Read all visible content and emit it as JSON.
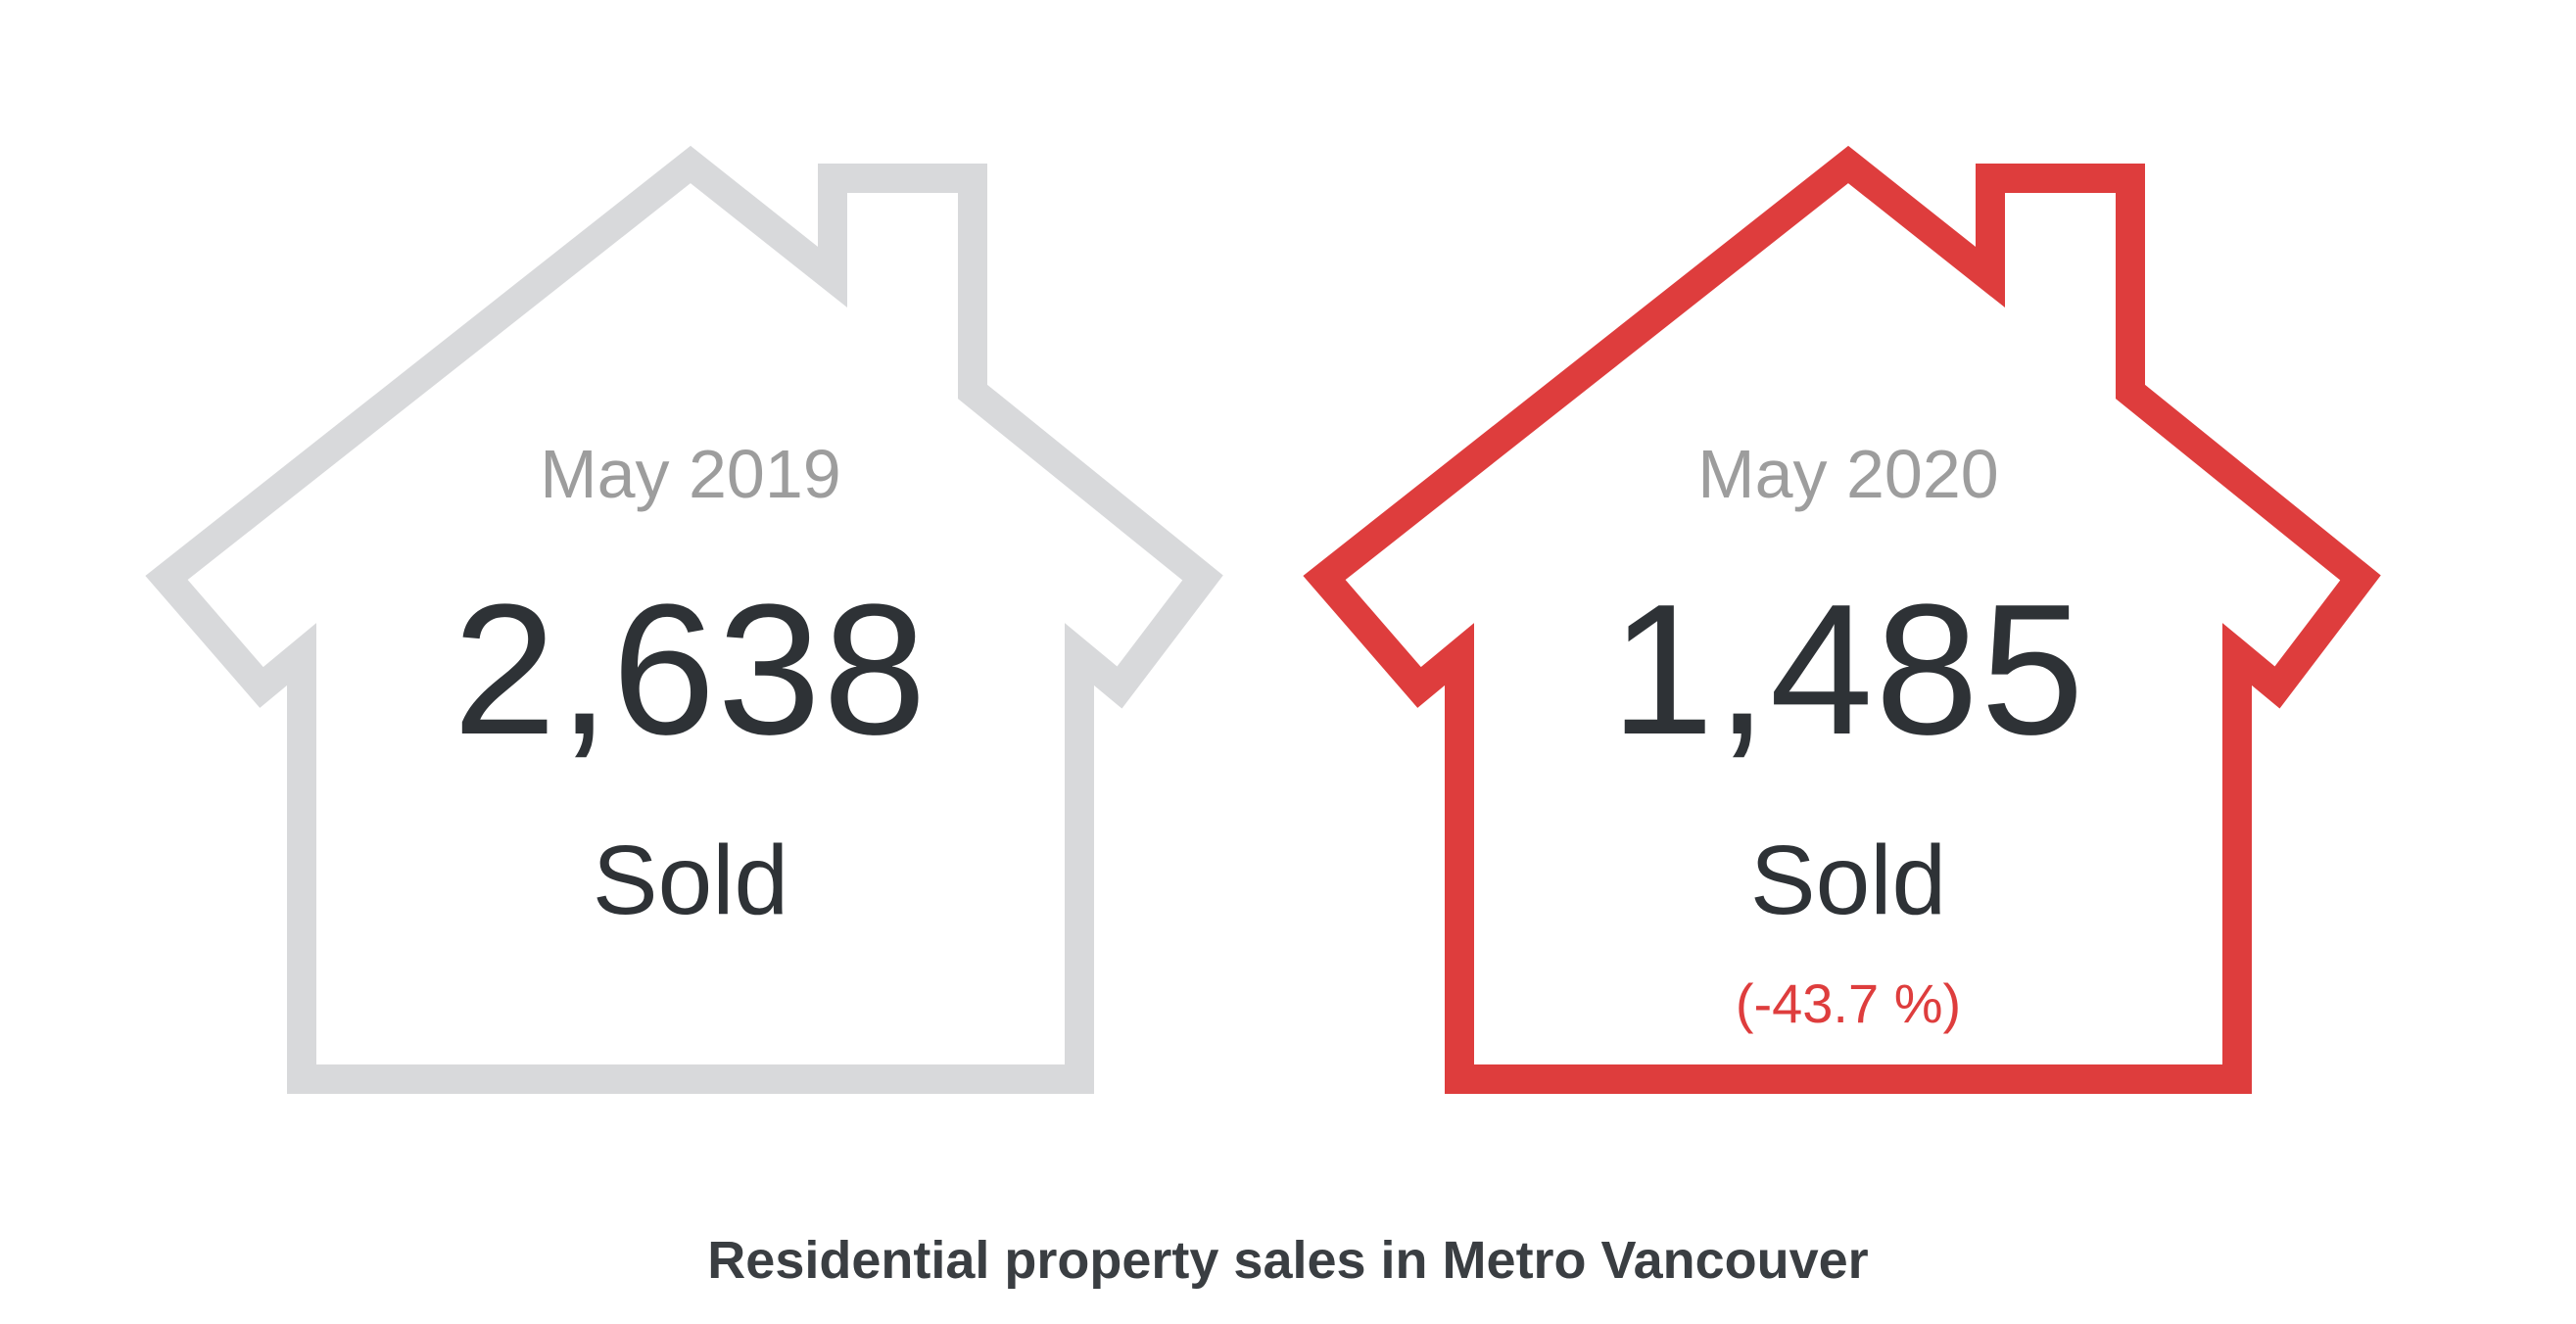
{
  "colors": {
    "house_2019_outline": "#d8d9db",
    "house_2020_outline": "#de3d3d",
    "period_text": "#9d9d9d",
    "count_text": "#2e3236",
    "change_text": "#de3d3d",
    "caption_text": "#3a3e42"
  },
  "houses": [
    {
      "period": "May 2019",
      "count": "2,638",
      "label": "Sold",
      "change": ""
    },
    {
      "period": "May 2020",
      "count": "1,485",
      "label": "Sold",
      "change": "(-43.7 %)"
    }
  ],
  "caption": "Residential property sales in Metro Vancouver"
}
